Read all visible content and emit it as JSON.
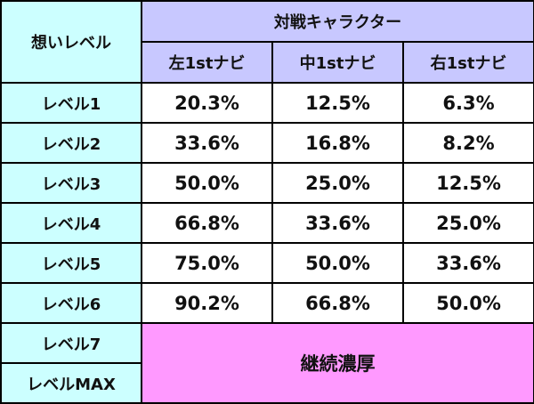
{
  "table": {
    "corner_label": "想いレベル",
    "group_header": "対戦キャラクター",
    "columns": [
      "左1stナビ",
      "中1stナビ",
      "右1stナビ"
    ],
    "rows": [
      {
        "level": "レベル1",
        "values": [
          "20.3%",
          "12.5%",
          "6.3%"
        ]
      },
      {
        "level": "レベル2",
        "values": [
          "33.6%",
          "16.8%",
          "8.2%"
        ]
      },
      {
        "level": "レベル3",
        "values": [
          "50.0%",
          "25.0%",
          "12.5%"
        ]
      },
      {
        "level": "レベル4",
        "values": [
          "66.8%",
          "33.6%",
          "25.0%"
        ]
      },
      {
        "level": "レベル5",
        "values": [
          "75.0%",
          "50.0%",
          "33.6%"
        ]
      },
      {
        "level": "レベル6",
        "values": [
          "90.2%",
          "66.8%",
          "50.0%"
        ]
      }
    ],
    "merged_rows": {
      "levels": [
        "レベル7",
        "レベルMAX"
      ],
      "text": "継続濃厚"
    },
    "colors": {
      "header_bg": "#c8c8ff",
      "level_bg": "#ccffff",
      "merged_bg": "#ff99ff",
      "border": "#000000"
    }
  }
}
